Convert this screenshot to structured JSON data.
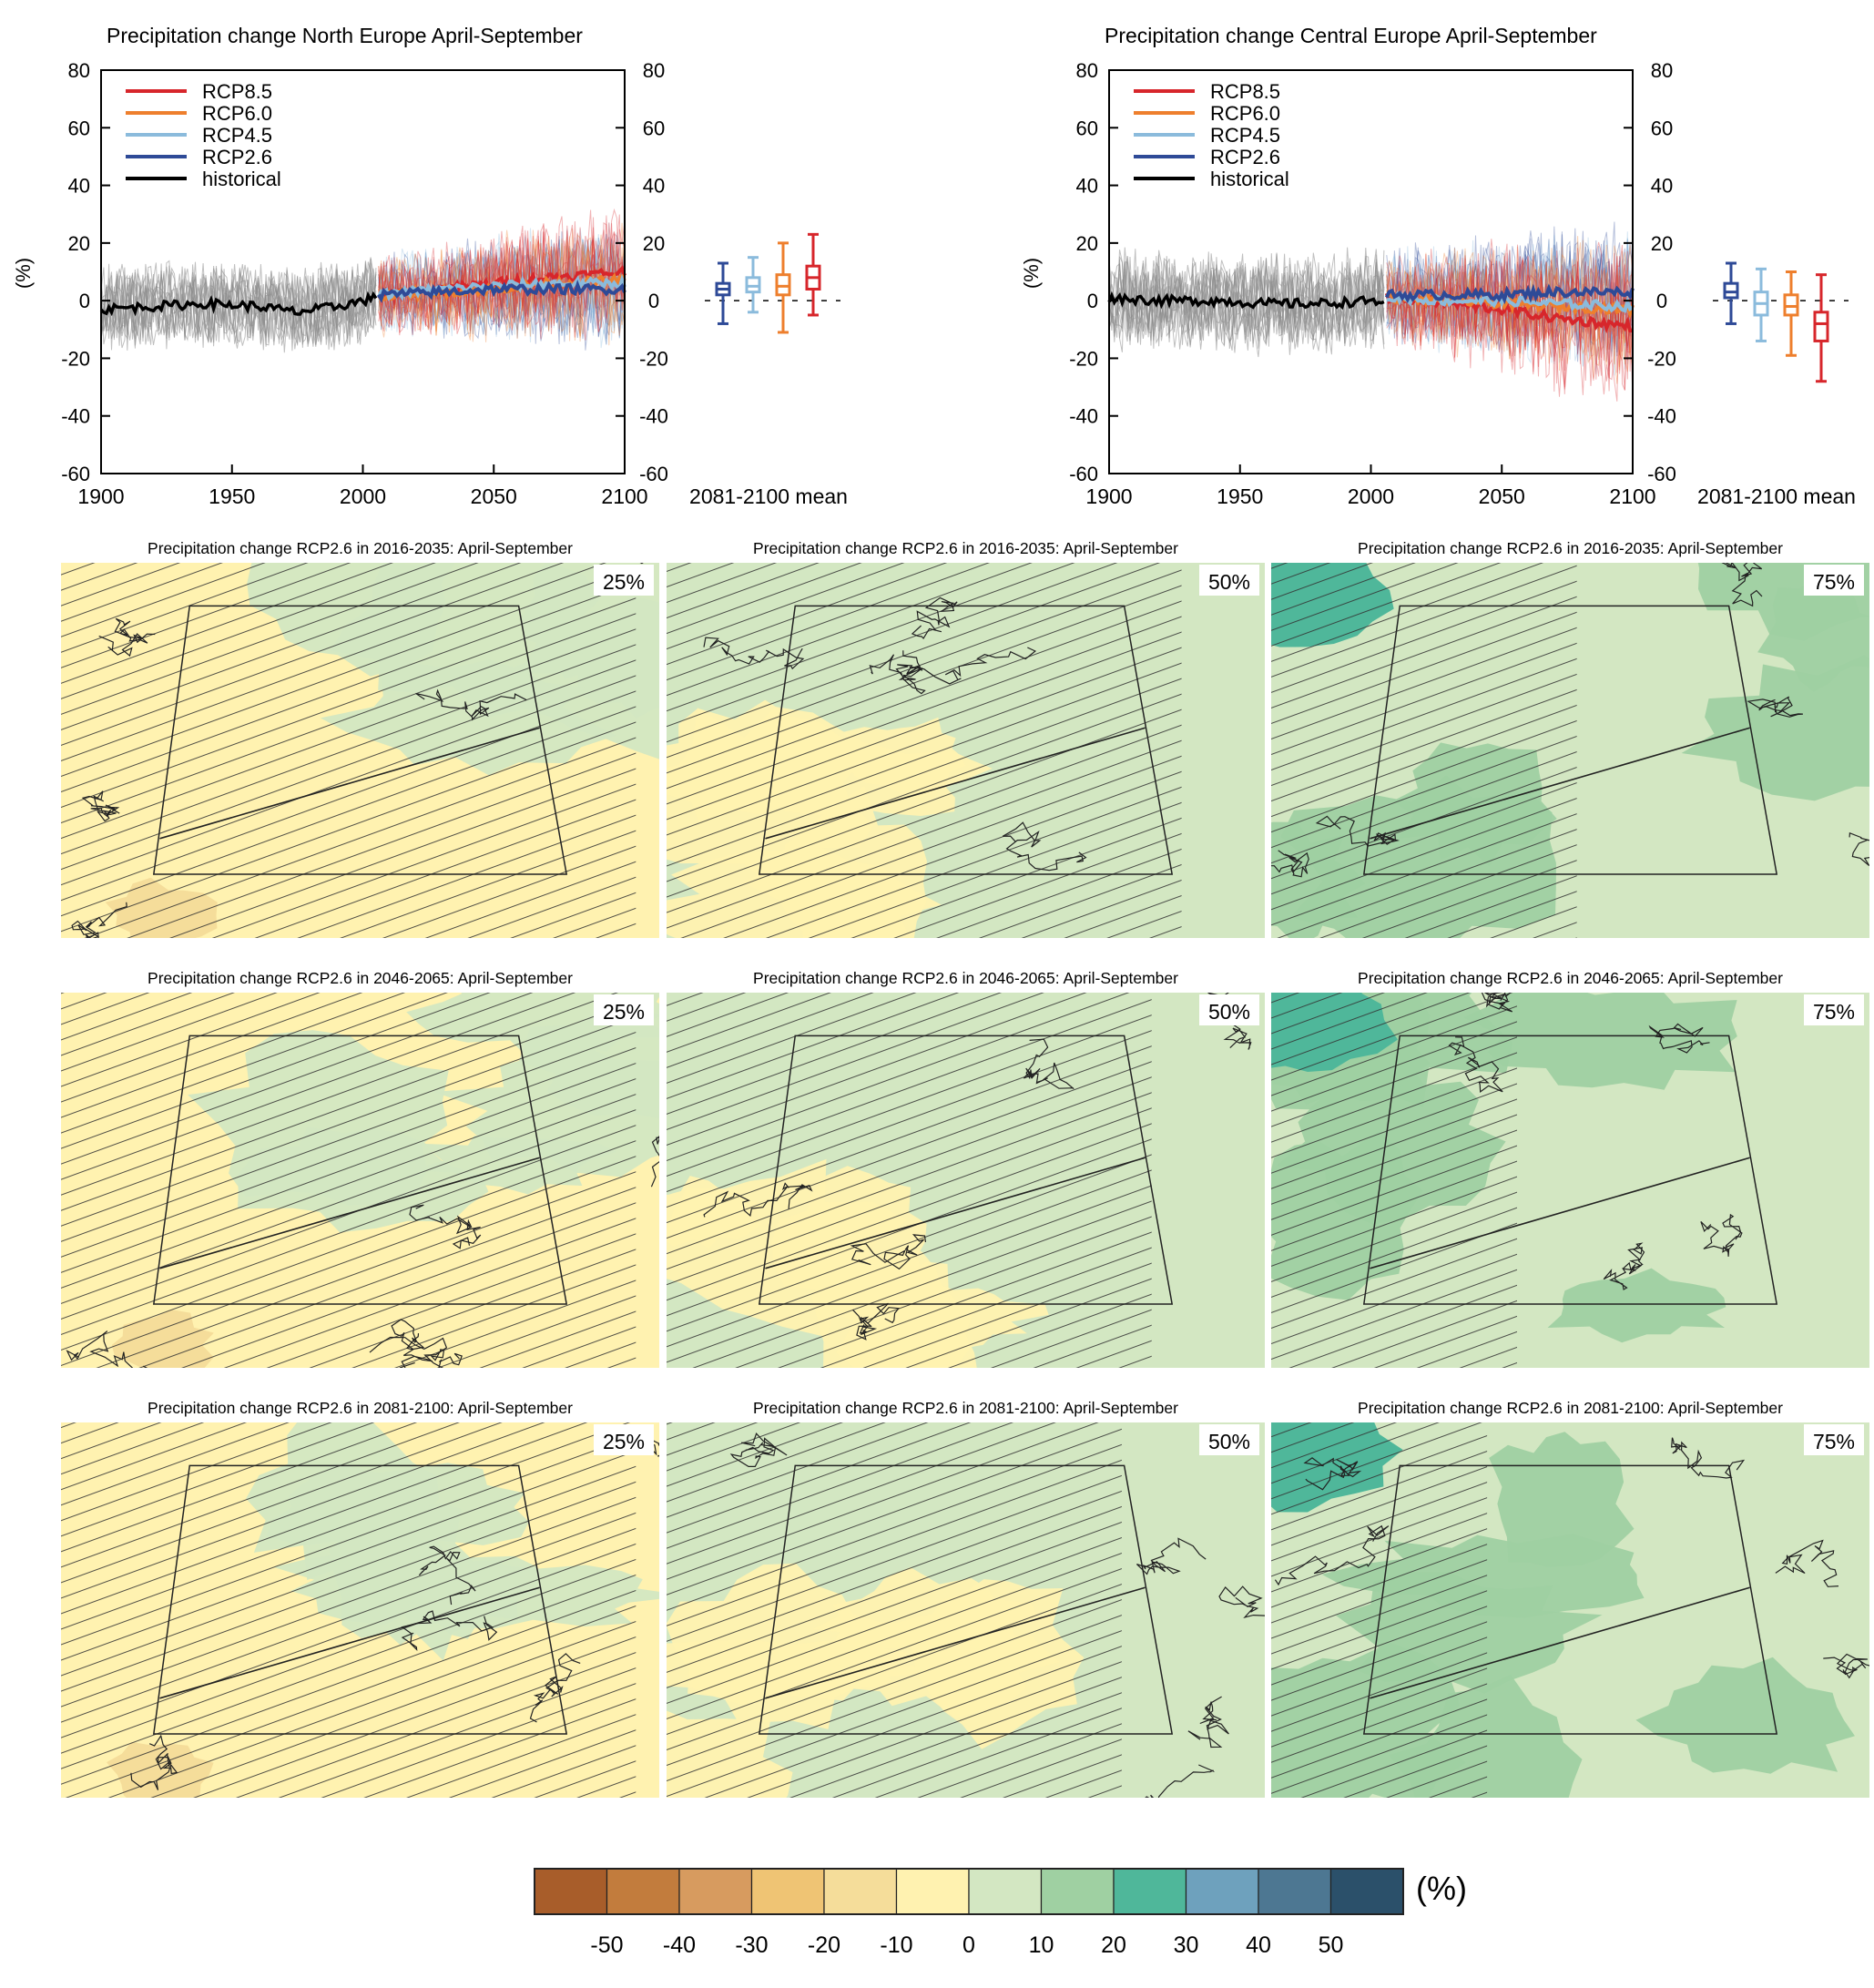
{
  "colors": {
    "rcp85": "#d7262b",
    "rcp60": "#ee7f2d",
    "rcp45": "#8bbbdc",
    "rcp26": "#2e4a97",
    "historical": "#000000",
    "hist_ensemble": "#8c8c8c"
  },
  "chart_data": [
    {
      "type": "line",
      "title": "Precipitation change North Europe April-September",
      "ylabel": "(%)",
      "xlim": [
        1900,
        2100
      ],
      "ylim": [
        -60,
        80
      ],
      "x_ticks": [
        "1900",
        "1950",
        "2000",
        "2050",
        "2100"
      ],
      "y_ticks_left": [
        "80",
        "60",
        "40",
        "20",
        "0",
        "-20",
        "-40",
        "-60"
      ],
      "y_ticks_right": [
        "80",
        "60",
        "40",
        "20",
        "0",
        "-20",
        "-40",
        "-60"
      ],
      "legend": [
        "RCP8.5",
        "RCP6.0",
        "RCP4.5",
        "RCP2.6",
        "historical"
      ],
      "legend_position": "top-left",
      "series": [
        {
          "name": "historical",
          "x": [
            1900,
            1920,
            1940,
            1960,
            1975,
            1990,
            2005
          ],
          "y": [
            -3,
            -2,
            -1,
            -2,
            -4,
            -2,
            1
          ]
        },
        {
          "name": "RCP2.6",
          "x": [
            2006,
            2030,
            2050,
            2070,
            2100
          ],
          "y": [
            2,
            3,
            4,
            4,
            4
          ]
        },
        {
          "name": "RCP4.5",
          "x": [
            2006,
            2030,
            2050,
            2070,
            2100
          ],
          "y": [
            2,
            4,
            5,
            6,
            6
          ]
        },
        {
          "name": "RCP6.0",
          "x": [
            2006,
            2030,
            2050,
            2070,
            2100
          ],
          "y": [
            2,
            3,
            4,
            6,
            7
          ]
        },
        {
          "name": "RCP8.5",
          "x": [
            2006,
            2030,
            2050,
            2070,
            2100
          ],
          "y": [
            2,
            4,
            6,
            8,
            10
          ]
        }
      ],
      "box_label": "2081-2100 mean",
      "boxes": [
        {
          "name": "RCP2.6",
          "min": -8,
          "q1": 2,
          "median": 4,
          "q3": 6,
          "max": 13
        },
        {
          "name": "RCP4.5",
          "min": -4,
          "q1": 3,
          "median": 5,
          "q3": 8,
          "max": 15
        },
        {
          "name": "RCP6.0",
          "min": -11,
          "q1": 2,
          "median": 5,
          "q3": 9,
          "max": 20
        },
        {
          "name": "RCP8.5",
          "min": -5,
          "q1": 4,
          "median": 8,
          "q3": 12,
          "max": 23
        }
      ]
    },
    {
      "type": "line",
      "title": "Precipitation change Central Europe April-September",
      "ylabel": "(%)",
      "xlim": [
        1900,
        2100
      ],
      "ylim": [
        -60,
        80
      ],
      "x_ticks": [
        "1900",
        "1950",
        "2000",
        "2050",
        "2100"
      ],
      "y_ticks_left": [
        "80",
        "60",
        "40",
        "20",
        "0",
        "-20",
        "-40",
        "-60"
      ],
      "y_ticks_right": [
        "80",
        "60",
        "40",
        "20",
        "0",
        "-20",
        "-40",
        "-60"
      ],
      "legend": [
        "RCP8.5",
        "RCP6.0",
        "RCP4.5",
        "RCP2.6",
        "historical"
      ],
      "legend_position": "top-left",
      "series": [
        {
          "name": "historical",
          "x": [
            1900,
            1920,
            1940,
            1960,
            1980,
            2005
          ],
          "y": [
            1,
            0,
            0,
            -1,
            -1,
            0
          ]
        },
        {
          "name": "RCP2.6",
          "x": [
            2006,
            2030,
            2050,
            2070,
            2100
          ],
          "y": [
            2,
            2,
            2,
            3,
            3
          ]
        },
        {
          "name": "RCP4.5",
          "x": [
            2006,
            2030,
            2050,
            2070,
            2100
          ],
          "y": [
            1,
            0,
            0,
            -1,
            -2
          ]
        },
        {
          "name": "RCP6.0",
          "x": [
            2006,
            2030,
            2050,
            2070,
            2100
          ],
          "y": [
            1,
            0,
            -1,
            -2,
            -3
          ]
        },
        {
          "name": "RCP8.5",
          "x": [
            2006,
            2030,
            2050,
            2070,
            2100
          ],
          "y": [
            1,
            -1,
            -3,
            -6,
            -9
          ]
        }
      ],
      "box_label": "2081-2100 mean",
      "boxes": [
        {
          "name": "RCP2.6",
          "min": -8,
          "q1": 1,
          "median": 3,
          "q3": 6,
          "max": 13
        },
        {
          "name": "RCP4.5",
          "min": -14,
          "q1": -5,
          "median": -1,
          "q3": 3,
          "max": 11
        },
        {
          "name": "RCP6.0",
          "min": -19,
          "q1": -5,
          "median": -2,
          "q3": 2,
          "max": 10
        },
        {
          "name": "RCP8.5",
          "min": -28,
          "q1": -14,
          "median": -8,
          "q3": -4,
          "max": 9
        }
      ]
    }
  ],
  "maps": [
    {
      "title": "Precipitation change RCP2.6 in 2016-2035: April-September",
      "percentile": "25%",
      "row": 0,
      "col": 0,
      "base": "#fff2b0",
      "accent": "#d3e7c2",
      "hatch": 0.9
    },
    {
      "title": "Precipitation change RCP2.6 in 2016-2035: April-September",
      "percentile": "50%",
      "row": 0,
      "col": 1,
      "base": "#d3e7c2",
      "accent": "#fff2b0",
      "hatch": 0.8
    },
    {
      "title": "Precipitation change RCP2.6 in 2016-2035: April-September",
      "percentile": "75%",
      "row": 0,
      "col": 2,
      "base": "#d3e7c2",
      "accent": "#9fd0a2",
      "hatch": 0.45
    },
    {
      "title": "Precipitation change RCP2.6 in 2046-2065: April-September",
      "percentile": "25%",
      "row": 1,
      "col": 0,
      "base": "#fff2b0",
      "accent": "#d3e7c2",
      "hatch": 0.9
    },
    {
      "title": "Precipitation change RCP2.6 in 2046-2065: April-September",
      "percentile": "50%",
      "row": 1,
      "col": 1,
      "base": "#d3e7c2",
      "accent": "#fff2b0",
      "hatch": 0.75
    },
    {
      "title": "Precipitation change RCP2.6 in 2046-2065: April-September",
      "percentile": "75%",
      "row": 1,
      "col": 2,
      "base": "#d3e7c2",
      "accent": "#9fd0a2",
      "hatch": 0.35
    },
    {
      "title": "Precipitation change RCP2.6 in 2081-2100: April-September",
      "percentile": "25%",
      "row": 2,
      "col": 0,
      "base": "#fff2b0",
      "accent": "#d3e7c2",
      "hatch": 0.9
    },
    {
      "title": "Precipitation change RCP2.6 in 2081-2100: April-September",
      "percentile": "50%",
      "row": 2,
      "col": 1,
      "base": "#d3e7c2",
      "accent": "#fff2b0",
      "hatch": 0.7
    },
    {
      "title": "Precipitation change RCP2.6 in 2081-2100: April-September",
      "percentile": "75%",
      "row": 2,
      "col": 2,
      "base": "#d3e7c2",
      "accent": "#9fd0a2",
      "hatch": 0.3
    }
  ],
  "colorbar": {
    "unit": "(%)",
    "colors": [
      "#a85d2a",
      "#c27c3d",
      "#d79b5f",
      "#efc474",
      "#f5dd9a",
      "#fff2b0",
      "#d3e7c2",
      "#9fd0a2",
      "#4fb79a",
      "#6ea1bd",
      "#4d7792",
      "#2b506a"
    ],
    "labels": [
      "-50",
      "-40",
      "-30",
      "-20",
      "-10",
      "0",
      "10",
      "20",
      "30",
      "40",
      "50"
    ]
  }
}
